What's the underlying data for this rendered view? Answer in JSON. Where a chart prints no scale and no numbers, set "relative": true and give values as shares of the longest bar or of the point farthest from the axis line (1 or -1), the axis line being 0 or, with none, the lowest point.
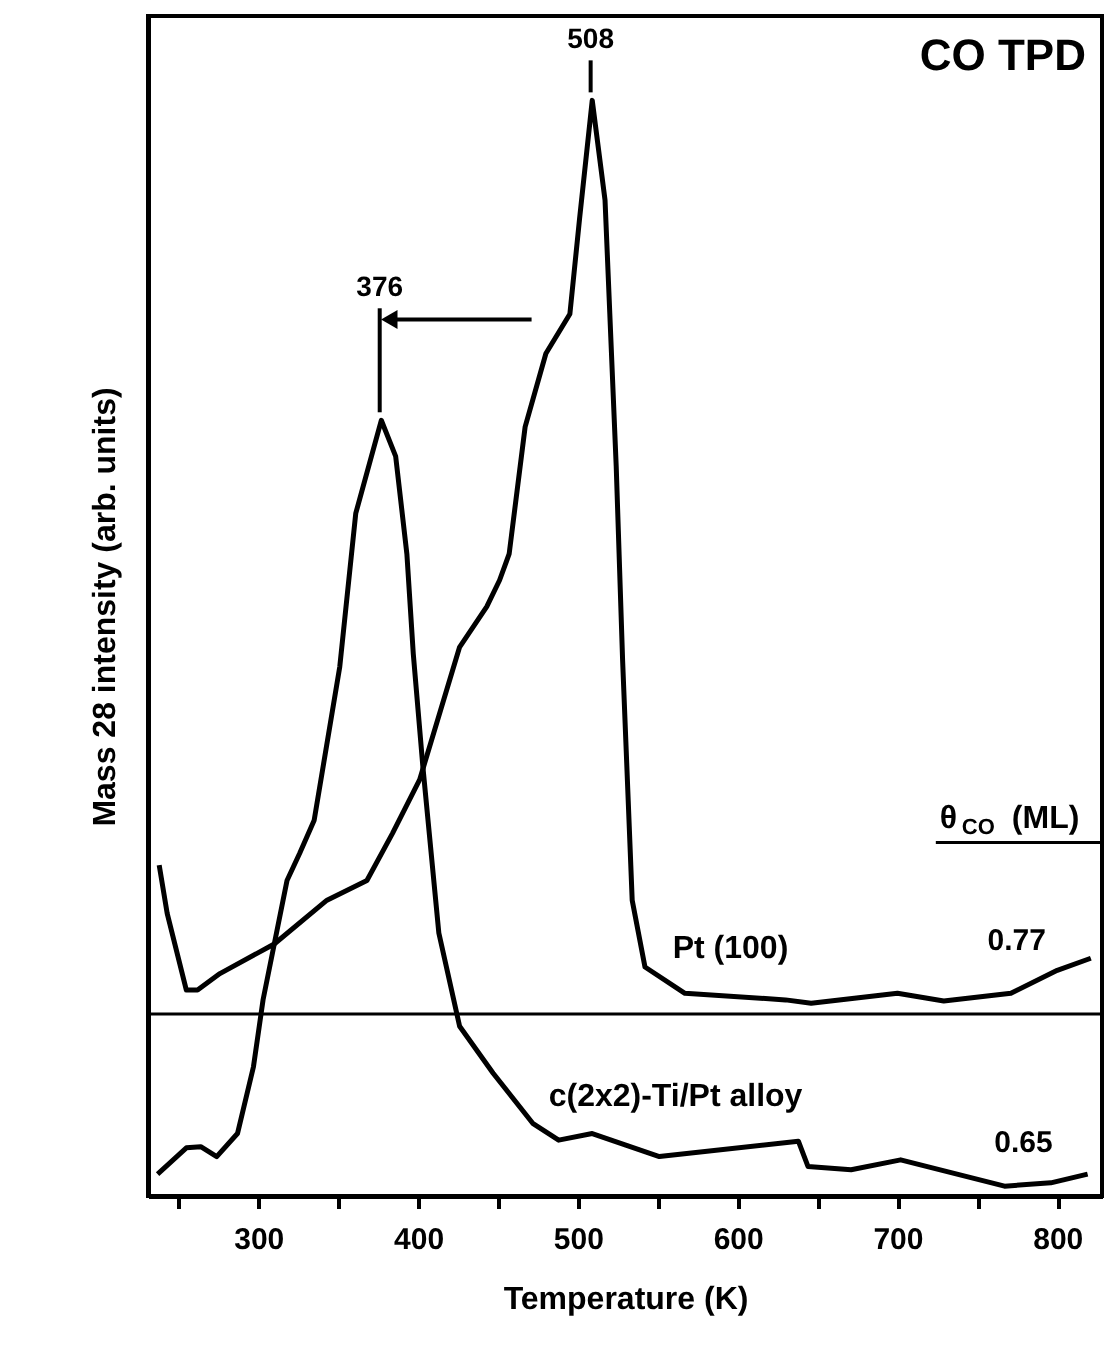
{
  "chart_data": {
    "type": "line",
    "title": "CO TPD",
    "xlabel": "Temperature (K)",
    "ylabel": "Mass 28 intensity (arb. units)",
    "relative": true,
    "xlim": [
      231,
      828
    ],
    "xticks": [
      {
        "value": 250,
        "label": null
      },
      300,
      {
        "value": 350,
        "label": null
      },
      400,
      {
        "value": 450,
        "label": null
      },
      500,
      {
        "value": 550,
        "label": null
      },
      600,
      {
        "value": 650,
        "label": null
      },
      700,
      {
        "value": 750,
        "label": null
      },
      800
    ],
    "grid": false,
    "marker": "none",
    "line_style": "solid",
    "series": [
      {
        "name": "Pt (100)",
        "color": "#000000",
        "x": [
          238,
          243,
          255,
          262,
          276,
          310,
          343,
          368,
          384,
          401,
          426,
          443,
          451,
          457,
          467,
          480,
          495,
          501,
          509,
          517,
          524,
          528,
          534,
          542,
          567,
          630,
          646,
          700,
          729,
          771,
          800,
          821
        ],
        "values": [
          0.302,
          0.258,
          0.188,
          0.188,
          0.203,
          0.23,
          0.27,
          0.288,
          0.331,
          0.38,
          0.501,
          0.538,
          0.562,
          0.586,
          0.702,
          0.769,
          0.805,
          0.891,
          1.0,
          0.909,
          0.666,
          0.489,
          0.27,
          0.209,
          0.185,
          0.179,
          0.176,
          0.185,
          0.178,
          0.185,
          0.206,
          0.217
        ]
      },
      {
        "name": "c(2x2)-Ti/Pt alloy",
        "color": "#000000",
        "x": [
          237,
          255,
          264,
          274,
          287,
          297,
          303,
          318,
          326,
          335,
          351,
          361,
          377,
          386,
          393,
          397,
          403,
          413,
          426,
          447,
          472,
          488,
          509,
          551,
          638,
          644,
          671,
          702,
          767,
          796,
          819
        ],
        "values": [
          0.02,
          0.044,
          0.045,
          0.036,
          0.057,
          0.118,
          0.179,
          0.288,
          0.313,
          0.343,
          0.483,
          0.623,
          0.708,
          0.675,
          0.586,
          0.495,
          0.392,
          0.24,
          0.155,
          0.112,
          0.066,
          0.051,
          0.057,
          0.036,
          0.05,
          0.027,
          0.024,
          0.033,
          0.009,
          0.012,
          0.02
        ]
      }
    ],
    "ref_lines": [
      {
        "axis": "y",
        "value": 0.166,
        "color": "#000000"
      }
    ],
    "annotations": [
      {
        "text": "508",
        "x": 508,
        "y": 1.0
      },
      {
        "text": "376",
        "x": 376,
        "y": 0.708
      },
      "θ$_{CO}$ (ML)",
      "0.77",
      "0.65"
    ]
  }
}
